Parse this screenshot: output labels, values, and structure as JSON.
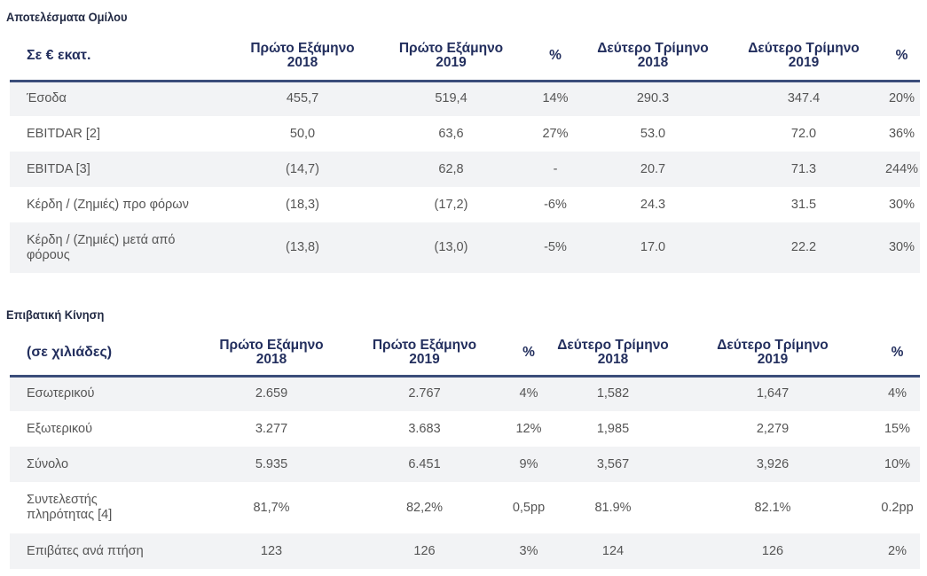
{
  "group_results": {
    "title": "Αποτελέσματα Ομίλου",
    "headers": [
      "Σε € εκατ.",
      "Πρώτο Εξάμηνο 2018",
      "Πρώτο Εξάμηνο 2019",
      "%",
      "Δεύτερο Τρίμηνο 2018",
      "Δεύτερο Τρίμηνο 2019",
      "%"
    ],
    "rows": [
      [
        "Έσοδα",
        "455,7",
        "519,4",
        "14%",
        "290.3",
        "347.4",
        "20%"
      ],
      [
        "EBITDAR [2]",
        "50,0",
        "63,6",
        "27%",
        "53.0",
        "72.0",
        "36%"
      ],
      [
        "EBITDA [3]",
        "(14,7)",
        "62,8",
        "-",
        "20.7",
        "71.3",
        "244%"
      ],
      [
        "Κέρδη / (Ζημιές) προ φόρων",
        "(18,3)",
        "(17,2)",
        "-6%",
        "24.3",
        "31.5",
        "30%"
      ],
      [
        "Κέρδη / (Ζημιές) μετά από φόρους",
        "(13,8)",
        "(13,0)",
        "-5%",
        "17.0",
        "22.2",
        "30%"
      ]
    ]
  },
  "passenger_traffic": {
    "title": "Επιβατική Κίνηση",
    "headers": [
      "(σε χιλιάδες)",
      "Πρώτο Εξάμηνο 2018",
      "Πρώτο Εξάμηνο 2019",
      "%",
      "Δεύτερο Τρίμηνο 2018",
      "Δεύτερο Τρίμηνο 2019",
      "%"
    ],
    "rows": [
      [
        "Εσωτερικού",
        "2.659",
        "2.767",
        "4%",
        "1,582",
        "1,647",
        "4%"
      ],
      [
        "Εξωτερικού",
        "3.277",
        "3.683",
        "12%",
        "1,985",
        "2,279",
        "15%"
      ],
      [
        "Σύνολο",
        "5.935",
        "6.451",
        "9%",
        "3,567",
        "3,926",
        "10%"
      ],
      [
        "Συντελεστής πληρότητας [4]",
        "81,7%",
        "82,2%",
        "0,5pp",
        "81.9%",
        "82.1%",
        "0.2pp"
      ],
      [
        "Επιβάτες ανά πτήση",
        "123",
        "126",
        "3%",
        "124",
        "126",
        "2%"
      ]
    ]
  }
}
